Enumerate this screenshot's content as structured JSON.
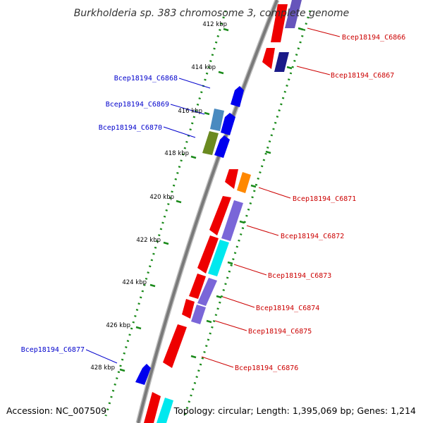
{
  "title": "Burkholderia sp. 383 chromosome 3, complete genome",
  "accession": "Accession: NC_007509",
  "topology": "Topology: circular; Length: 1,395,069 bp; Genes: 1,214",
  "colors": {
    "backbone": "#888888",
    "forward_label": "#cc0000",
    "reverse_label": "#0000cc",
    "tick": "#1a8a1a"
  },
  "kbp_ticks": [
    "412 kbp",
    "414 kbp",
    "416 kbp",
    "418 kbp",
    "420 kbp",
    "422 kbp",
    "424 kbp",
    "426 kbp",
    "428 kbp"
  ],
  "genes_forward": [
    "Bcep18194_C6866",
    "Bcep18194_C6867",
    "Bcep18194_C6871",
    "Bcep18194_C6872",
    "Bcep18194_C6873",
    "Bcep18194_C6874",
    "Bcep18194_C6875",
    "Bcep18194_C6876"
  ],
  "genes_reverse": [
    "Bcep18194_C6868",
    "Bcep18194_C6869",
    "Bcep18194_C6870",
    "Bcep18194_C6877"
  ]
}
